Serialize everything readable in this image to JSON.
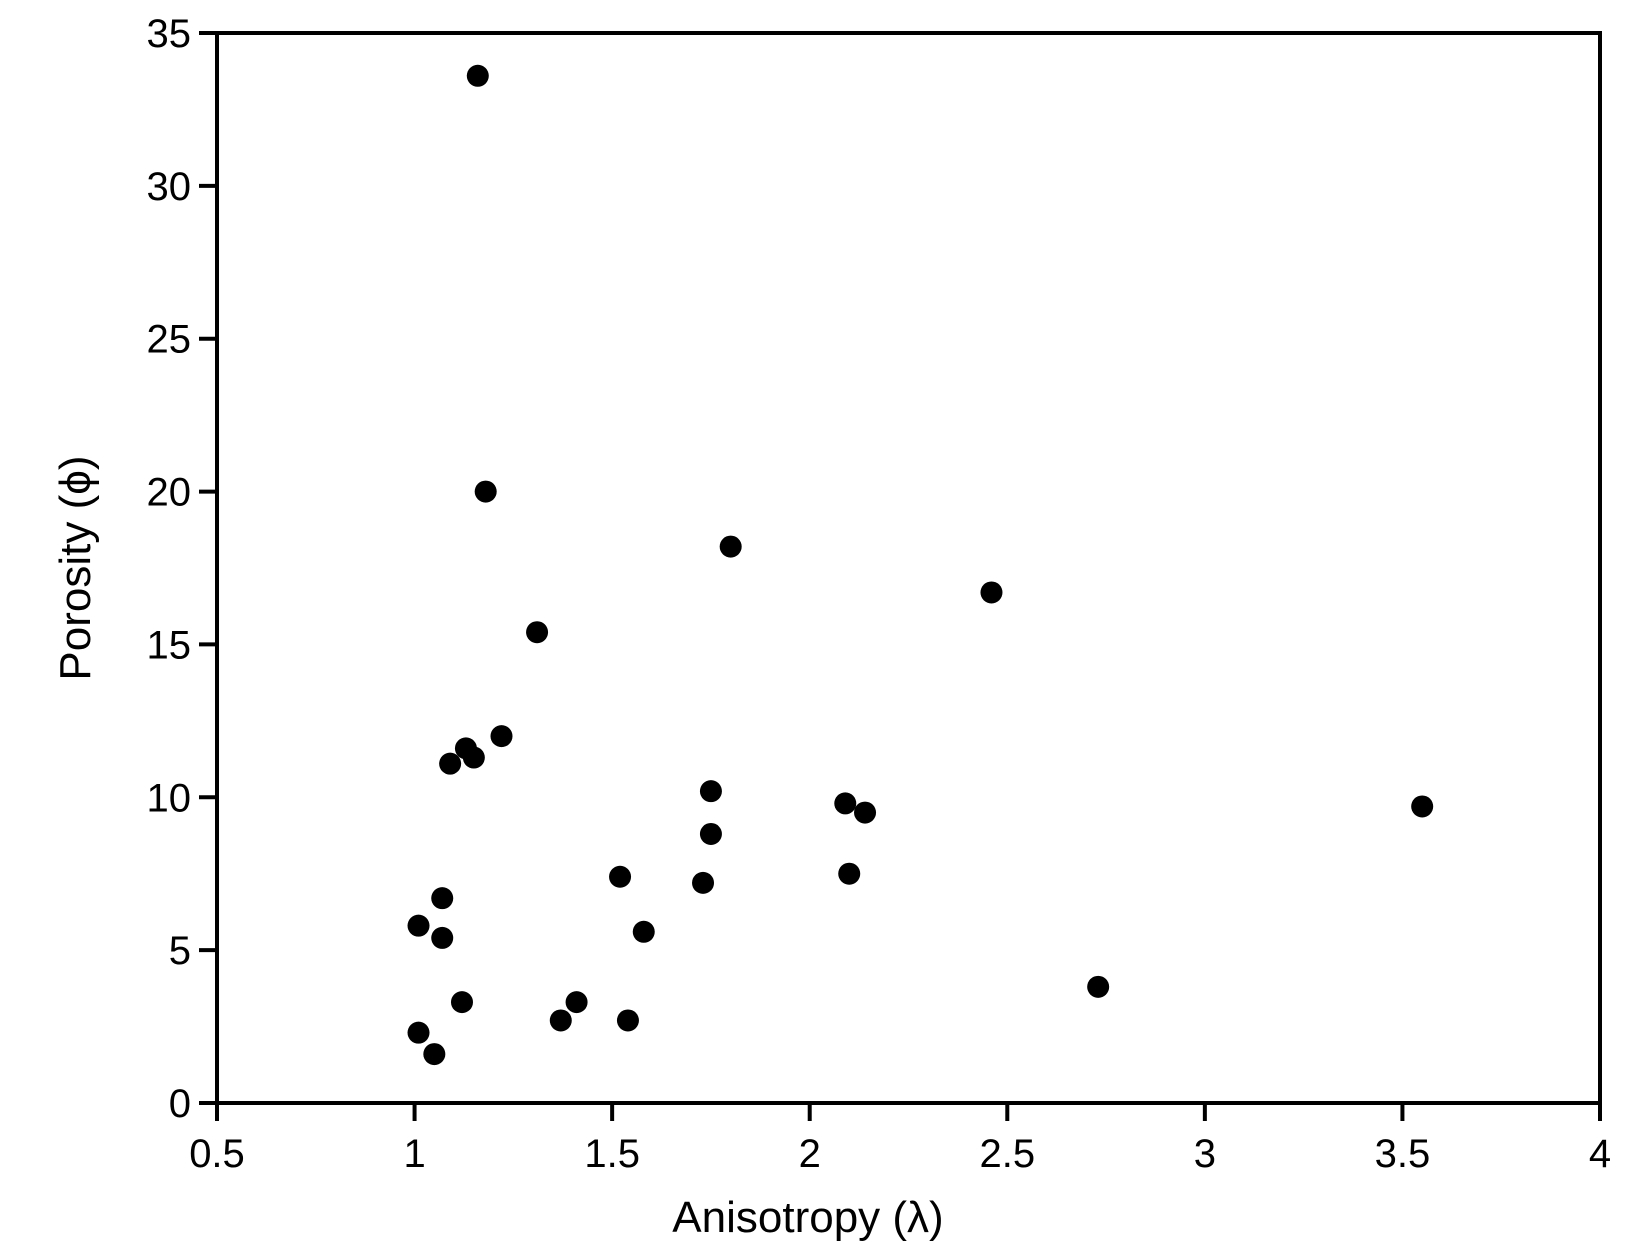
{
  "chart_data": {
    "type": "scatter",
    "title": "",
    "xlabel": "Anisotropy (λ)",
    "ylabel": "Porosity (ϕ)",
    "xlim": [
      0.5,
      4
    ],
    "ylim": [
      0,
      35
    ],
    "xticks": [
      0.5,
      1,
      1.5,
      2,
      2.5,
      3,
      3.5,
      4
    ],
    "xtick_labels": [
      "0.5",
      "1",
      "1.5",
      "2",
      "2.5",
      "3",
      "3.5",
      "4"
    ],
    "yticks": [
      0,
      5,
      10,
      15,
      20,
      25,
      30,
      35
    ],
    "ytick_labels": [
      "0",
      "5",
      "10",
      "15",
      "20",
      "25",
      "30",
      "35"
    ],
    "grid": false,
    "marker_color": "#000000",
    "series": [
      {
        "x": [
          1.16,
          1.18,
          1.8,
          2.46,
          1.31,
          1.22,
          1.13,
          1.15,
          1.09,
          1.75,
          2.09,
          2.14,
          3.55,
          1.75,
          2.1,
          1.52,
          1.73,
          1.07,
          1.01,
          1.07,
          1.58,
          1.12,
          1.41,
          1.37,
          1.54,
          1.01,
          1.05,
          2.73
        ],
        "y": [
          33.6,
          20.0,
          18.2,
          16.7,
          15.4,
          12.0,
          11.6,
          11.3,
          11.1,
          10.2,
          9.8,
          9.5,
          9.7,
          8.8,
          7.5,
          7.4,
          7.2,
          6.7,
          5.8,
          5.4,
          5.6,
          3.3,
          3.3,
          2.7,
          2.7,
          2.3,
          1.6,
          3.8
        ]
      }
    ]
  }
}
